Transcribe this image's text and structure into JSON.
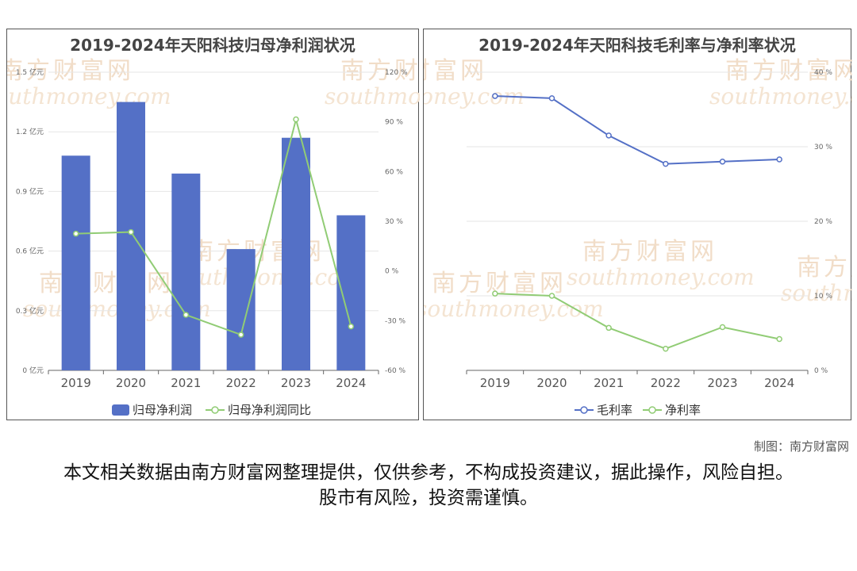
{
  "left_chart": {
    "title": "2019-2024年天阳科技归母净利润状况",
    "legend": {
      "bar": "归母净利润",
      "line": "归母净利润同比"
    }
  },
  "right_chart": {
    "title": "2019-2024年天阳科技毛利率与净利率状况",
    "legend": {
      "gross": "毛利率",
      "net": "净利率"
    }
  },
  "chart_data": [
    {
      "type": "bar",
      "title": "2019-2024年天阳科技归母净利润状况",
      "categories": [
        "2019",
        "2020",
        "2021",
        "2022",
        "2023",
        "2024"
      ],
      "y_ticks": [
        "0 亿元",
        "0.3 亿元",
        "0.6 亿元",
        "0.9 亿元",
        "1.2 亿元",
        "1.5 亿元"
      ],
      "y2_ticks": [
        "-60 %",
        "-30 %",
        "0 %",
        "30 %",
        "60 %",
        "90 %",
        "120 %"
      ],
      "ylim": [
        0,
        1.5
      ],
      "y2lim": [
        -60,
        120
      ],
      "series": [
        {
          "name": "归母净利润",
          "type": "bar",
          "axis": "left",
          "color": "#5470c6",
          "values": [
            1.08,
            1.35,
            0.99,
            0.61,
            1.17,
            0.78
          ]
        },
        {
          "name": "归母净利润同比",
          "type": "line",
          "axis": "right",
          "color": "#91cc75",
          "values": [
            22.5,
            23.5,
            -26.5,
            -38.5,
            91.5,
            -33.5
          ]
        }
      ],
      "grid": true,
      "legend_position": "bottom"
    },
    {
      "type": "line",
      "title": "2019-2024年天阳科技毛利率与净利率状况",
      "categories": [
        "2019",
        "2020",
        "2021",
        "2022",
        "2023",
        "2024"
      ],
      "y_ticks": [
        "0 %",
        "10 %",
        "20 %",
        "30 %",
        "40 %"
      ],
      "ylim": [
        0,
        40
      ],
      "series": [
        {
          "name": "毛利率",
          "color": "#5470c6",
          "values": [
            36.8,
            36.5,
            31.5,
            27.7,
            28.0,
            28.3
          ]
        },
        {
          "name": "净利率",
          "color": "#91cc75",
          "values": [
            10.3,
            10.0,
            5.7,
            2.9,
            5.8,
            4.2
          ]
        }
      ],
      "grid": true,
      "legend_position": "bottom"
    }
  ],
  "watermark": {
    "cn": "南方财富网",
    "en": "southmoney.com"
  },
  "credit": "制图：南方财富网",
  "disclaimer": "本文相关数据由南方财富网整理提供，仅供参考，不构成投资建议，据此操作，风险自担。股市有风险，投资需谨慎。"
}
